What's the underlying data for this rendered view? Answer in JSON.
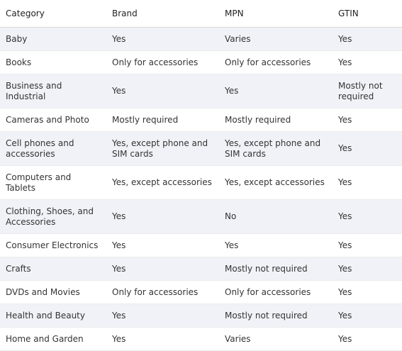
{
  "table": {
    "headers": [
      "Category",
      "Brand",
      "MPN",
      "GTIN"
    ],
    "rows": [
      {
        "category": "Baby",
        "brand": "Yes",
        "mpn": "Varies",
        "gtin": "Yes"
      },
      {
        "category": "Books",
        "brand": "Only for accessories",
        "mpn": "Only for accessories",
        "gtin": "Yes"
      },
      {
        "category": "Business and Industrial",
        "brand": "Yes",
        "mpn": "Yes",
        "gtin": "Mostly not required"
      },
      {
        "category": "Cameras and Photo",
        "brand": "Mostly required",
        "mpn": "Mostly required",
        "gtin": "Yes"
      },
      {
        "category": "Cell phones and accessories",
        "brand": "Yes, except phone and SIM cards",
        "mpn": "Yes, except phone and SIM cards",
        "gtin": "Yes"
      },
      {
        "category": "Computers and Tablets",
        "brand": "Yes, except accessories",
        "mpn": "Yes, except accessories",
        "gtin": "Yes"
      },
      {
        "category": "Clothing, Shoes, and Accessories",
        "brand": "Yes",
        "mpn": "No",
        "gtin": "Yes"
      },
      {
        "category": "Consumer Electronics",
        "brand": "Yes",
        "mpn": "Yes",
        "gtin": "Yes"
      },
      {
        "category": "Crafts",
        "brand": "Yes",
        "mpn": "Mostly not required",
        "gtin": "Yes"
      },
      {
        "category": "DVDs and Movies",
        "brand": "Only for accessories",
        "mpn": "Only for accessories",
        "gtin": "Yes"
      },
      {
        "category": "Health and Beauty",
        "brand": "Yes",
        "mpn": "Mostly not required",
        "gtin": "Yes"
      },
      {
        "category": "Home and Garden",
        "brand": "Yes",
        "mpn": "Varies",
        "gtin": "Yes"
      }
    ]
  }
}
